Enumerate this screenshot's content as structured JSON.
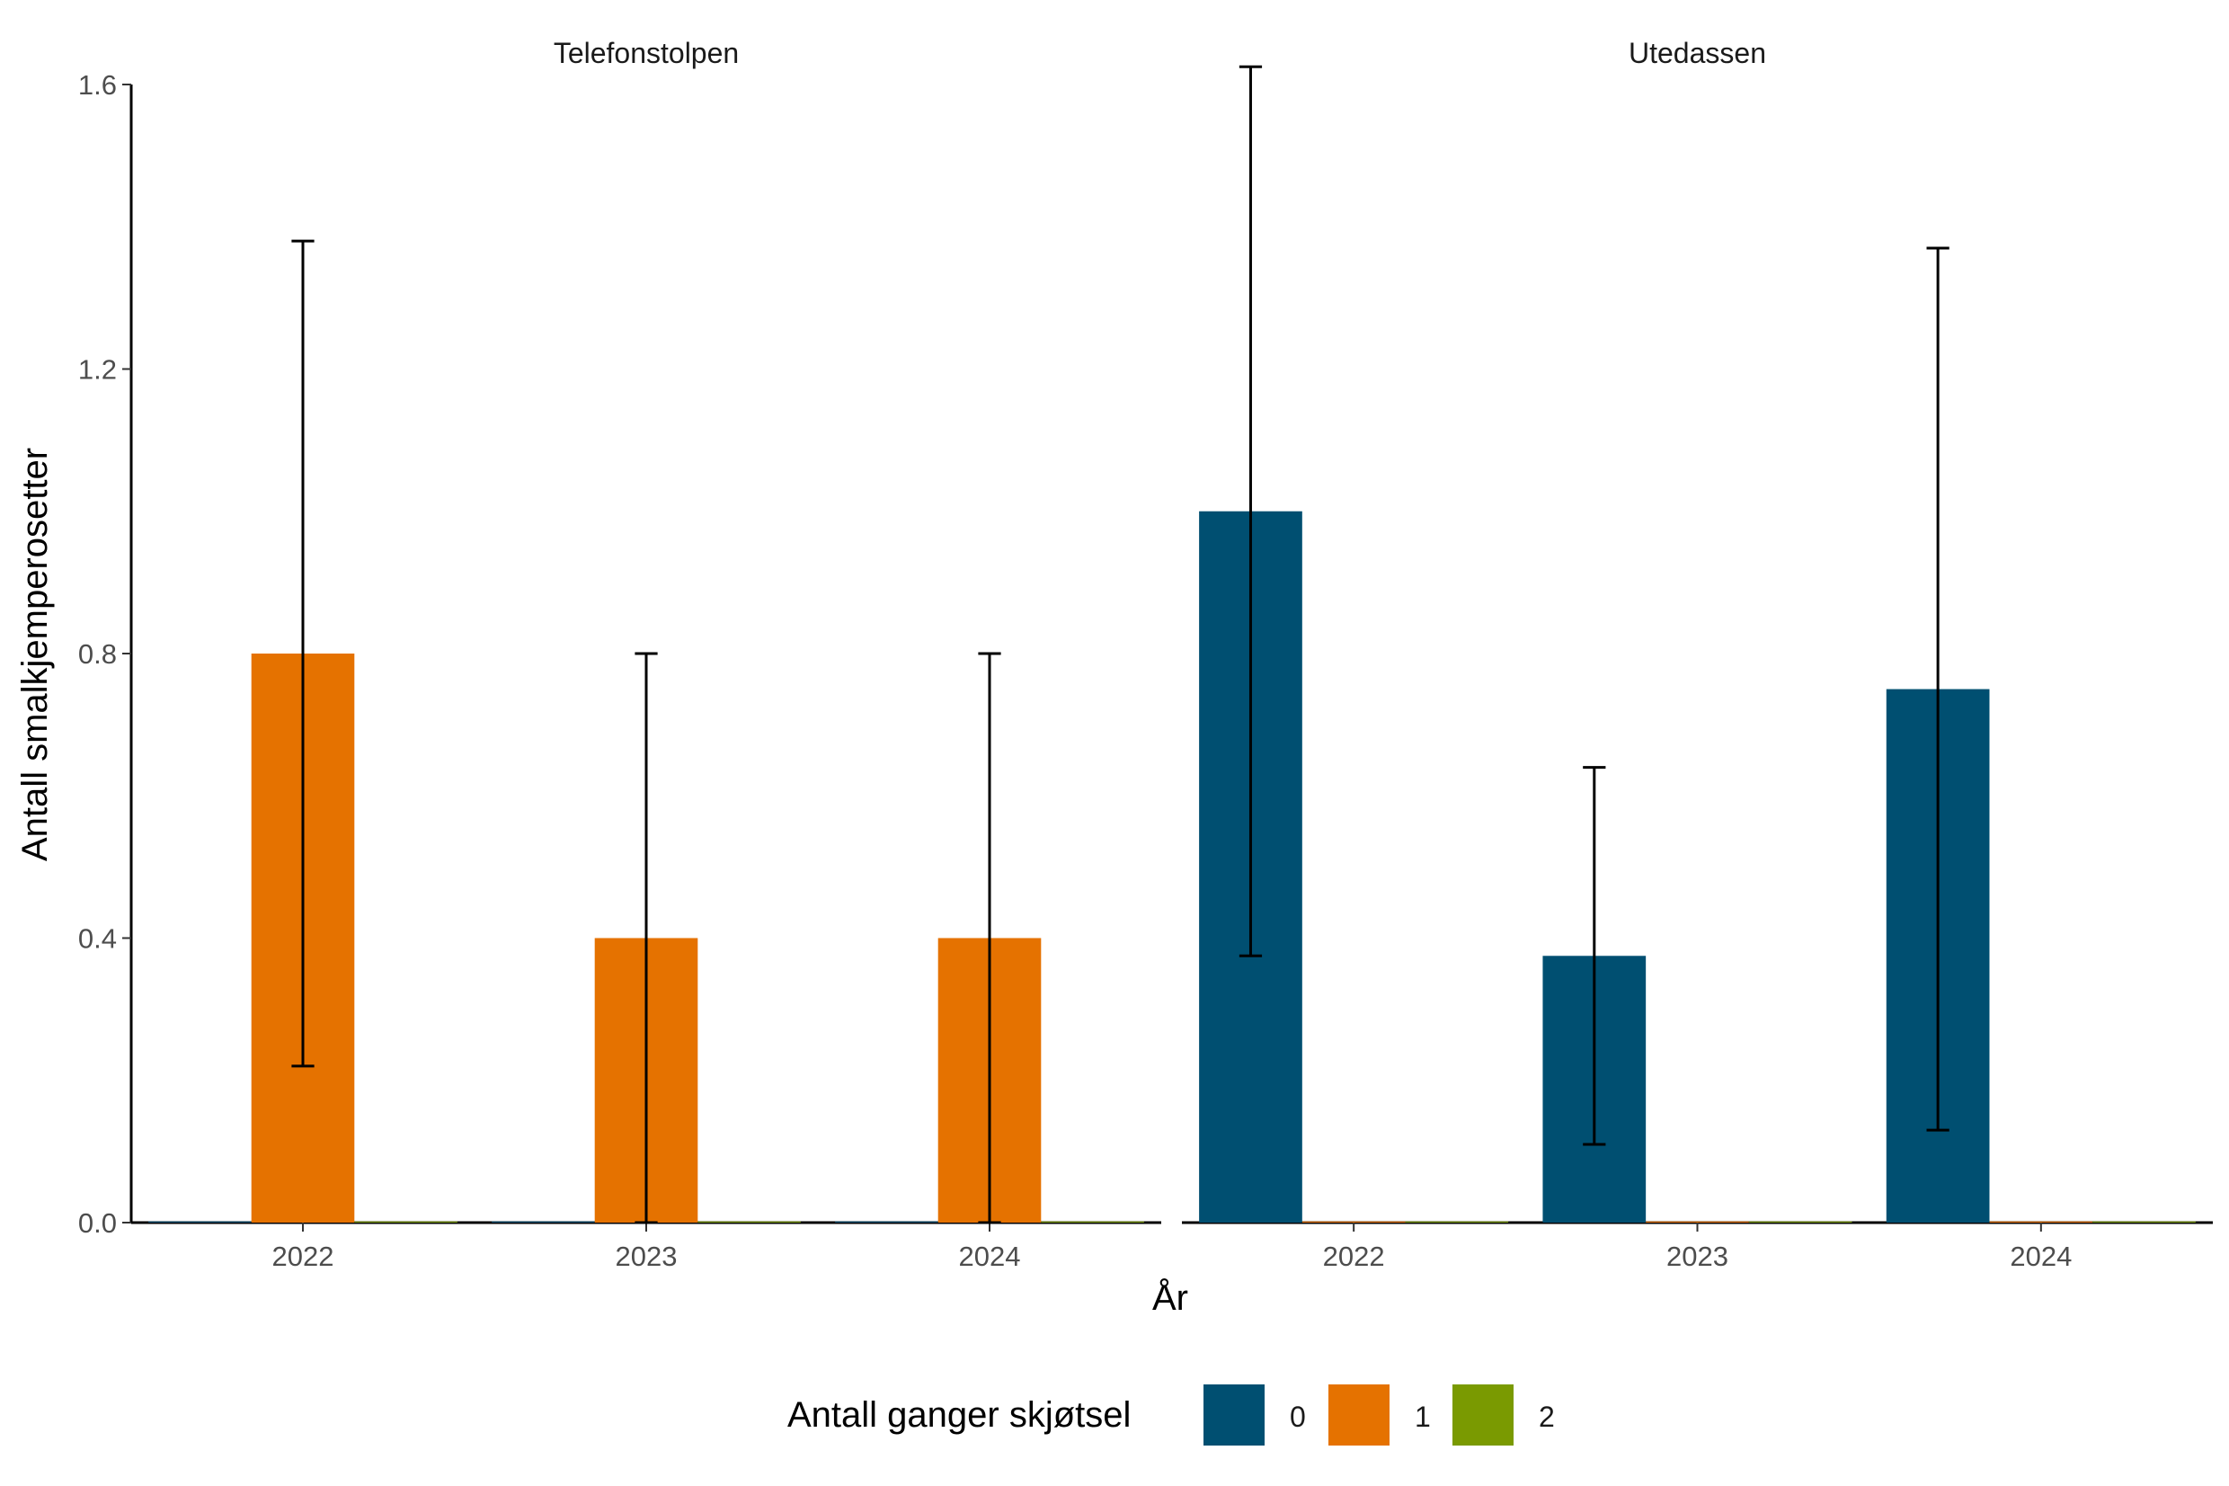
{
  "chart_data": {
    "type": "bar",
    "ylabel": "Antall smalkjemperosetter",
    "xlabel": "År",
    "ylim": [
      0,
      1.6
    ],
    "yticks": [
      "0.0",
      "0.4",
      "0.8",
      "1.2",
      "1.6"
    ],
    "categories": [
      "2022",
      "2023",
      "2024"
    ],
    "legend": {
      "title": "Antall ganger skjøtsel",
      "position": "bottom",
      "items": [
        {
          "label": "0",
          "color": "#004f71"
        },
        {
          "label": "1",
          "color": "#e57200"
        },
        {
          "label": "2",
          "color": "#7a9a01"
        }
      ]
    },
    "grid": false,
    "panels": [
      {
        "title": "Telefonstolpen",
        "series": [
          {
            "name": "0",
            "values": [
              0,
              0,
              0
            ],
            "errors": [
              null,
              null,
              null
            ]
          },
          {
            "name": "1",
            "values": [
              0.8,
              0.4,
              0.4
            ],
            "errors": [
              [
                0.22,
                1.38
              ],
              [
                0,
                0.8
              ],
              [
                0,
                0.8
              ]
            ]
          },
          {
            "name": "2",
            "values": [
              0,
              0,
              0
            ],
            "errors": [
              null,
              null,
              null
            ]
          }
        ]
      },
      {
        "title": "Utedassen",
        "series": [
          {
            "name": "0",
            "values": [
              1.0,
              0.375,
              0.75
            ],
            "errors": [
              [
                0.375,
                1.625
              ],
              [
                0.11,
                0.64
              ],
              [
                0.13,
                1.37
              ]
            ]
          },
          {
            "name": "1",
            "values": [
              0,
              0,
              0
            ],
            "errors": [
              null,
              null,
              null
            ]
          },
          {
            "name": "2",
            "values": [
              0,
              0,
              0
            ],
            "errors": [
              null,
              null,
              null
            ]
          }
        ]
      }
    ]
  }
}
